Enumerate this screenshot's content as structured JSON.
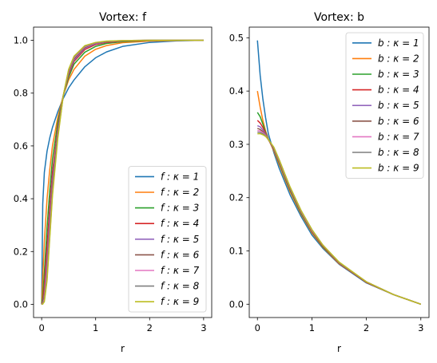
{
  "chart_data": [
    {
      "type": "line",
      "title": "Vortex: f",
      "xlabel": "r",
      "ylabel": "",
      "xlim": [
        -0.15,
        3.15
      ],
      "ylim": [
        -0.05,
        1.05
      ],
      "xticks": [
        0,
        1,
        2,
        3
      ],
      "yticks": [
        0.0,
        0.2,
        0.4,
        0.6,
        0.8,
        1.0
      ],
      "xtick_labels": [
        "0",
        "1",
        "2",
        "3"
      ],
      "ytick_labels": [
        "0.0",
        "0.2",
        "0.4",
        "0.6",
        "0.8",
        "1.0"
      ],
      "legend_position": "lower-right",
      "grid": false,
      "x": [
        0,
        0.02,
        0.05,
        0.1,
        0.15,
        0.2,
        0.3,
        0.4,
        0.5,
        0.6,
        0.8,
        1.0,
        1.2,
        1.5,
        2.0,
        2.5,
        3.0
      ],
      "series": [
        {
          "name": "f : κ = 1",
          "color": "#1f77b4",
          "values": [
            0,
            0.38,
            0.5,
            0.58,
            0.63,
            0.67,
            0.73,
            0.78,
            0.82,
            0.85,
            0.9,
            0.934,
            0.956,
            0.977,
            0.992,
            0.998,
            1.0
          ]
        },
        {
          "name": "f : κ = 2",
          "color": "#ff7f0e",
          "values": [
            0,
            0.1,
            0.24,
            0.4,
            0.51,
            0.6,
            0.71,
            0.79,
            0.85,
            0.89,
            0.94,
            0.966,
            0.98,
            0.991,
            0.997,
            0.999,
            1.0
          ]
        },
        {
          "name": "f : κ = 3",
          "color": "#2ca02c",
          "values": [
            0,
            0.03,
            0.12,
            0.29,
            0.43,
            0.55,
            0.69,
            0.79,
            0.86,
            0.91,
            0.955,
            0.977,
            0.988,
            0.995,
            0.999,
            1.0,
            1.0
          ]
        },
        {
          "name": "f : κ = 4",
          "color": "#d62728",
          "values": [
            0,
            0.01,
            0.07,
            0.22,
            0.37,
            0.5,
            0.67,
            0.79,
            0.87,
            0.92,
            0.965,
            0.984,
            0.992,
            0.997,
            0.999,
            1.0,
            1.0
          ]
        },
        {
          "name": "f : κ = 5",
          "color": "#9467bd",
          "values": [
            0,
            0.005,
            0.04,
            0.17,
            0.33,
            0.47,
            0.66,
            0.79,
            0.875,
            0.925,
            0.97,
            0.987,
            0.994,
            0.998,
            1.0,
            1.0,
            1.0
          ]
        },
        {
          "name": "f : κ = 6",
          "color": "#8c564b",
          "values": [
            0,
            0.003,
            0.03,
            0.14,
            0.3,
            0.45,
            0.65,
            0.79,
            0.88,
            0.93,
            0.973,
            0.989,
            0.995,
            0.998,
            1.0,
            1.0,
            1.0
          ]
        },
        {
          "name": "f : κ = 7",
          "color": "#e377c2",
          "values": [
            0,
            0.002,
            0.02,
            0.12,
            0.28,
            0.43,
            0.64,
            0.79,
            0.885,
            0.935,
            0.976,
            0.99,
            0.996,
            0.999,
            1.0,
            1.0,
            1.0
          ]
        },
        {
          "name": "f : κ = 8",
          "color": "#7f7f7f",
          "values": [
            0,
            0.001,
            0.015,
            0.1,
            0.26,
            0.42,
            0.64,
            0.79,
            0.887,
            0.938,
            0.978,
            0.991,
            0.996,
            0.999,
            1.0,
            1.0,
            1.0
          ]
        },
        {
          "name": "f : κ = 9",
          "color": "#bcbd22",
          "values": [
            0,
            0.001,
            0.01,
            0.09,
            0.25,
            0.41,
            0.63,
            0.79,
            0.89,
            0.94,
            0.98,
            0.992,
            0.997,
            0.999,
            1.0,
            1.0,
            1.0
          ]
        }
      ]
    },
    {
      "type": "line",
      "title": "Vortex: b",
      "xlabel": "r",
      "ylabel": "",
      "xlim": [
        -0.15,
        3.15
      ],
      "ylim": [
        -0.025,
        0.52
      ],
      "xticks": [
        0,
        1,
        2,
        3
      ],
      "yticks": [
        0.0,
        0.1,
        0.2,
        0.3,
        0.4,
        0.5
      ],
      "xtick_labels": [
        "0",
        "1",
        "2",
        "3"
      ],
      "ytick_labels": [
        "0.0",
        "0.1",
        "0.2",
        "0.3",
        "0.4",
        "0.5"
      ],
      "legend_position": "upper-right",
      "grid": false,
      "x": [
        0,
        0.05,
        0.1,
        0.15,
        0.2,
        0.3,
        0.4,
        0.5,
        0.6,
        0.8,
        1.0,
        1.2,
        1.5,
        2.0,
        2.5,
        3.0
      ],
      "series": [
        {
          "name": "b : κ = 1",
          "color": "#1f77b4",
          "values": [
            0.495,
            0.43,
            0.385,
            0.35,
            0.32,
            0.285,
            0.255,
            0.23,
            0.205,
            0.165,
            0.13,
            0.105,
            0.075,
            0.04,
            0.018,
            0.0
          ]
        },
        {
          "name": "b : κ = 2",
          "color": "#ff7f0e",
          "values": [
            0.4,
            0.37,
            0.345,
            0.325,
            0.31,
            0.288,
            0.262,
            0.236,
            0.211,
            0.169,
            0.134,
            0.107,
            0.076,
            0.041,
            0.018,
            0.0
          ]
        },
        {
          "name": "b : κ = 3",
          "color": "#2ca02c",
          "values": [
            0.36,
            0.352,
            0.338,
            0.323,
            0.31,
            0.29,
            0.265,
            0.239,
            0.214,
            0.171,
            0.136,
            0.108,
            0.077,
            0.041,
            0.018,
            0.0
          ]
        },
        {
          "name": "b : κ = 4",
          "color": "#d62728",
          "values": [
            0.345,
            0.34,
            0.332,
            0.321,
            0.309,
            0.291,
            0.267,
            0.241,
            0.216,
            0.173,
            0.137,
            0.109,
            0.077,
            0.041,
            0.018,
            0.0
          ]
        },
        {
          "name": "b : κ = 5",
          "color": "#9467bd",
          "values": [
            0.335,
            0.333,
            0.327,
            0.319,
            0.309,
            0.292,
            0.268,
            0.242,
            0.217,
            0.174,
            0.138,
            0.11,
            0.078,
            0.042,
            0.018,
            0.0
          ]
        },
        {
          "name": "b : κ = 6",
          "color": "#8c564b",
          "values": [
            0.33,
            0.328,
            0.324,
            0.318,
            0.309,
            0.293,
            0.269,
            0.243,
            0.218,
            0.175,
            0.139,
            0.11,
            0.078,
            0.042,
            0.018,
            0.0
          ]
        },
        {
          "name": "b : κ = 7",
          "color": "#e377c2",
          "values": [
            0.326,
            0.325,
            0.322,
            0.317,
            0.309,
            0.294,
            0.27,
            0.244,
            0.219,
            0.175,
            0.139,
            0.111,
            0.078,
            0.042,
            0.018,
            0.0
          ]
        },
        {
          "name": "b : κ = 8",
          "color": "#7f7f7f",
          "values": [
            0.323,
            0.322,
            0.32,
            0.316,
            0.309,
            0.294,
            0.271,
            0.245,
            0.219,
            0.176,
            0.14,
            0.111,
            0.078,
            0.042,
            0.018,
            0.0
          ]
        },
        {
          "name": "b : κ = 9",
          "color": "#bcbd22",
          "values": [
            0.32,
            0.32,
            0.318,
            0.315,
            0.309,
            0.295,
            0.271,
            0.245,
            0.22,
            0.176,
            0.14,
            0.111,
            0.079,
            0.042,
            0.018,
            0.0
          ]
        }
      ]
    }
  ]
}
